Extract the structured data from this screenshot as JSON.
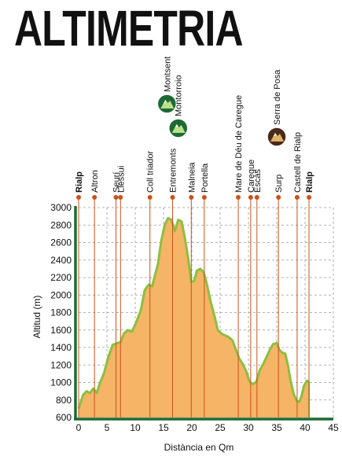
{
  "title": "ALTIMETRIA",
  "chart_data": {
    "type": "area",
    "title": "ALTIMETRIA",
    "xlabel": "Distància en Qm",
    "ylabel": "Altitud (m)",
    "xlim": [
      0,
      45
    ],
    "ylim": [
      600,
      3000
    ],
    "xticks": [
      0,
      5,
      10,
      15,
      20,
      25,
      30,
      35,
      40,
      45
    ],
    "yticks": [
      600,
      800,
      1000,
      1200,
      1400,
      1600,
      1800,
      2000,
      2200,
      2400,
      2600,
      2800,
      3000
    ],
    "grid": true,
    "colors": {
      "fill": "#f5b466",
      "line": "#8cbf3f",
      "axis": "#1e6a35",
      "leader": "#c8531c",
      "marker": "#c8531c",
      "black_label": "#111111",
      "green_label": "#1e6a35"
    },
    "profile": [
      [
        0,
        700
      ],
      [
        0.8,
        860
      ],
      [
        1.4,
        900
      ],
      [
        2,
        880
      ],
      [
        2.6,
        930
      ],
      [
        3.2,
        880
      ],
      [
        3.8,
        1000
      ],
      [
        4.5,
        1110
      ],
      [
        5.2,
        1280
      ],
      [
        6,
        1430
      ],
      [
        6.8,
        1450
      ],
      [
        7.4,
        1460
      ],
      [
        8,
        1560
      ],
      [
        8.7,
        1600
      ],
      [
        9.4,
        1580
      ],
      [
        10.2,
        1690
      ],
      [
        11,
        1830
      ],
      [
        11.7,
        2060
      ],
      [
        12.4,
        2120
      ],
      [
        13,
        2100
      ],
      [
        13.5,
        2230
      ],
      [
        14,
        2350
      ],
      [
        14.6,
        2620
      ],
      [
        15.2,
        2800
      ],
      [
        15.8,
        2880
      ],
      [
        16.4,
        2860
      ],
      [
        17,
        2730
      ],
      [
        17.6,
        2860
      ],
      [
        18.2,
        2840
      ],
      [
        18.8,
        2640
      ],
      [
        19.4,
        2400
      ],
      [
        19.9,
        2150
      ],
      [
        20.4,
        2160
      ],
      [
        20.9,
        2280
      ],
      [
        21.5,
        2300
      ],
      [
        22.1,
        2260
      ],
      [
        22.7,
        2110
      ],
      [
        23.3,
        1930
      ],
      [
        24,
        1760
      ],
      [
        24.6,
        1600
      ],
      [
        25.2,
        1560
      ],
      [
        25.8,
        1540
      ],
      [
        26.5,
        1520
      ],
      [
        27.2,
        1480
      ],
      [
        27.8,
        1370
      ],
      [
        28.4,
        1270
      ],
      [
        29,
        1210
      ],
      [
        29.6,
        1130
      ],
      [
        30.2,
        1010
      ],
      [
        30.8,
        980
      ],
      [
        31.4,
        1010
      ],
      [
        32,
        1140
      ],
      [
        32.6,
        1210
      ],
      [
        33.2,
        1290
      ],
      [
        33.8,
        1380
      ],
      [
        34.4,
        1440
      ],
      [
        35,
        1450
      ],
      [
        35.5,
        1370
      ],
      [
        36,
        1340
      ],
      [
        36.5,
        1330
      ],
      [
        37,
        1190
      ],
      [
        37.5,
        1000
      ],
      [
        38,
        870
      ],
      [
        38.5,
        790
      ],
      [
        39,
        780
      ],
      [
        39.4,
        850
      ],
      [
        39.8,
        960
      ],
      [
        40.3,
        1020
      ],
      [
        40.7,
        1010
      ]
    ],
    "locations": [
      {
        "name": "Rialp",
        "km": 0,
        "style": "black"
      },
      {
        "name": "Altron",
        "km": 2.8,
        "style": "plain"
      },
      {
        "name": "Seurí",
        "km": 6.6,
        "style": "plain"
      },
      {
        "name": "Llessui",
        "km": 7.4,
        "style": "plain"
      },
      {
        "name": "Coll triador",
        "km": 12.6,
        "style": "green"
      },
      {
        "name": "Entremonts",
        "km": 16.6,
        "style": "plain"
      },
      {
        "name": "Malneia",
        "km": 19.9,
        "style": "plain"
      },
      {
        "name": "Portella",
        "km": 22.2,
        "style": "plain"
      },
      {
        "name": "Mare de Déu de Caregue",
        "km": 28.2,
        "style": "green"
      },
      {
        "name": "Caregue",
        "km": 30.4,
        "style": "plain"
      },
      {
        "name": "Escàs",
        "km": 31.5,
        "style": "plain"
      },
      {
        "name": "Surp",
        "km": 35.3,
        "style": "plain"
      },
      {
        "name": "Castell de Rialp",
        "km": 38.6,
        "style": "green"
      },
      {
        "name": "Rialp",
        "km": 40.7,
        "style": "black"
      }
    ],
    "summits": [
      {
        "name": "Montsent",
        "km": 15.6,
        "icon": "green-mountain-icon"
      },
      {
        "name": "Montorroio",
        "km": 17.6,
        "icon": "green-mountain-icon"
      },
      {
        "name": "Serra de Posa",
        "km": 35.0,
        "icon": "brown-mountain-icon"
      }
    ]
  }
}
